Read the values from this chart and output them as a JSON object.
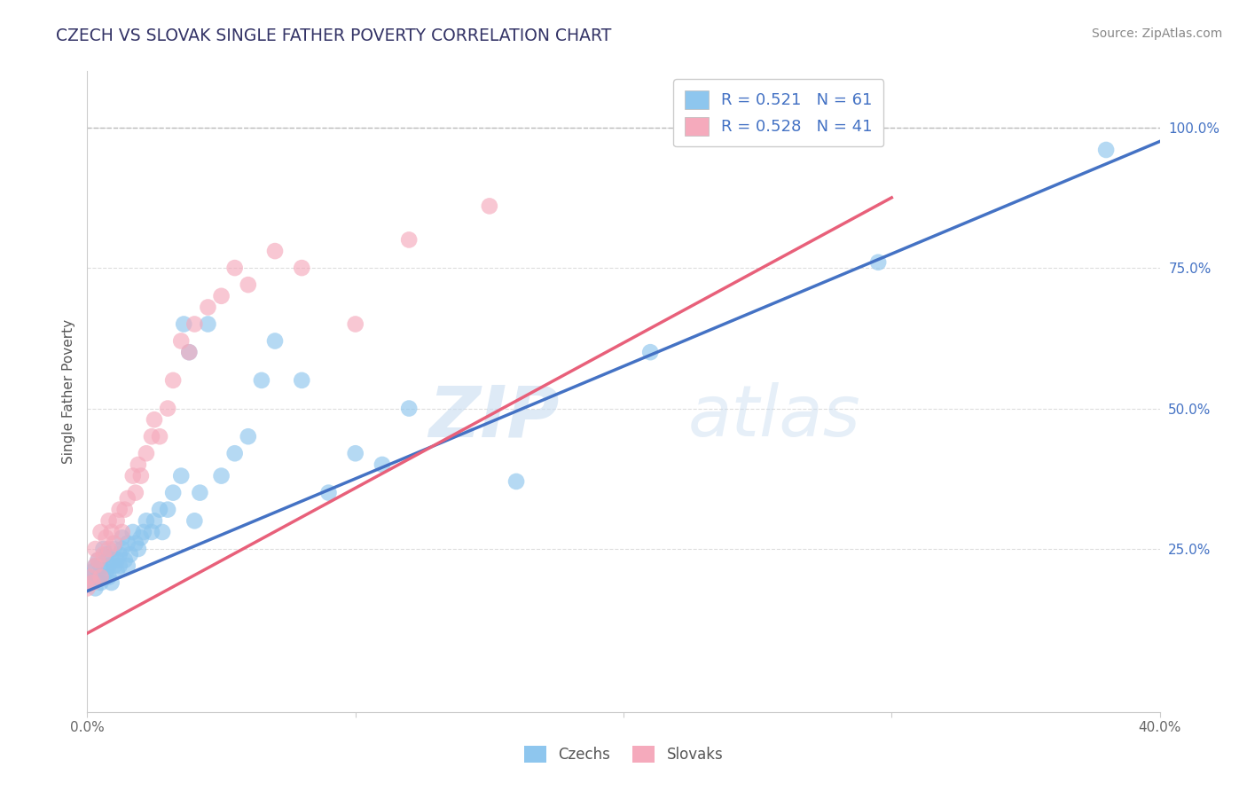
{
  "title": "CZECH VS SLOVAK SINGLE FATHER POVERTY CORRELATION CHART",
  "source": "Source: ZipAtlas.com",
  "ylabel": "Single Father Poverty",
  "xlim": [
    0.0,
    0.4
  ],
  "ylim": [
    -0.04,
    1.1
  ],
  "x_ticks": [
    0.0,
    0.1,
    0.2,
    0.3,
    0.4
  ],
  "x_tick_labels": [
    "0.0%",
    "",
    "",
    "",
    "40.0%"
  ],
  "y_ticks_right": [
    0.25,
    0.5,
    0.75,
    1.0
  ],
  "y_tick_labels_right": [
    "25.0%",
    "50.0%",
    "75.0%",
    "100.0%"
  ],
  "czech_color": "#8EC6EE",
  "czech_color_line": "#4472C4",
  "slovak_color": "#F5AABC",
  "slovak_color_line": "#E8607A",
  "czech_R": 0.521,
  "czech_N": 61,
  "slovak_R": 0.528,
  "slovak_N": 41,
  "watermark_zip": "ZIP",
  "watermark_atlas": "atlas",
  "background_color": "#FFFFFF",
  "grid_color": "#DDDDDD",
  "legend_label_czech": "Czechs",
  "legend_label_slovak": "Slovaks",
  "czech_line_x0": 0.0,
  "czech_line_y0": 0.175,
  "czech_line_x1": 0.4,
  "czech_line_y1": 0.975,
  "slovak_line_x0": 0.0,
  "slovak_line_y0": 0.1,
  "slovak_line_x1": 0.3,
  "slovak_line_y1": 0.875,
  "czech_scatter_x": [
    0.0,
    0.001,
    0.002,
    0.003,
    0.003,
    0.004,
    0.004,
    0.005,
    0.005,
    0.006,
    0.006,
    0.007,
    0.007,
    0.008,
    0.008,
    0.009,
    0.009,
    0.01,
    0.01,
    0.011,
    0.011,
    0.012,
    0.012,
    0.013,
    0.013,
    0.014,
    0.015,
    0.015,
    0.016,
    0.017,
    0.018,
    0.019,
    0.02,
    0.021,
    0.022,
    0.024,
    0.025,
    0.027,
    0.028,
    0.03,
    0.032,
    0.035,
    0.036,
    0.038,
    0.04,
    0.042,
    0.045,
    0.05,
    0.055,
    0.06,
    0.065,
    0.07,
    0.08,
    0.09,
    0.1,
    0.11,
    0.12,
    0.16,
    0.21,
    0.295,
    0.38
  ],
  "czech_scatter_y": [
    0.2,
    0.19,
    0.21,
    0.22,
    0.18,
    0.2,
    0.23,
    0.19,
    0.22,
    0.2,
    0.25,
    0.21,
    0.24,
    0.22,
    0.2,
    0.23,
    0.19,
    0.22,
    0.25,
    0.23,
    0.21,
    0.22,
    0.24,
    0.25,
    0.27,
    0.23,
    0.22,
    0.26,
    0.24,
    0.28,
    0.26,
    0.25,
    0.27,
    0.28,
    0.3,
    0.28,
    0.3,
    0.32,
    0.28,
    0.32,
    0.35,
    0.38,
    0.65,
    0.6,
    0.3,
    0.35,
    0.65,
    0.38,
    0.42,
    0.45,
    0.55,
    0.62,
    0.55,
    0.35,
    0.42,
    0.4,
    0.5,
    0.37,
    0.6,
    0.76,
    0.96
  ],
  "slovak_scatter_x": [
    0.0,
    0.001,
    0.002,
    0.003,
    0.003,
    0.004,
    0.005,
    0.005,
    0.006,
    0.007,
    0.008,
    0.008,
    0.009,
    0.01,
    0.011,
    0.012,
    0.013,
    0.014,
    0.015,
    0.017,
    0.018,
    0.019,
    0.02,
    0.022,
    0.024,
    0.025,
    0.027,
    0.03,
    0.032,
    0.035,
    0.038,
    0.04,
    0.045,
    0.05,
    0.055,
    0.06,
    0.07,
    0.08,
    0.1,
    0.12,
    0.15
  ],
  "slovak_scatter_y": [
    0.18,
    0.2,
    0.19,
    0.22,
    0.25,
    0.23,
    0.2,
    0.28,
    0.24,
    0.27,
    0.25,
    0.3,
    0.28,
    0.26,
    0.3,
    0.32,
    0.28,
    0.32,
    0.34,
    0.38,
    0.35,
    0.4,
    0.38,
    0.42,
    0.45,
    0.48,
    0.45,
    0.5,
    0.55,
    0.62,
    0.6,
    0.65,
    0.68,
    0.7,
    0.75,
    0.72,
    0.78,
    0.75,
    0.65,
    0.8,
    0.86
  ]
}
